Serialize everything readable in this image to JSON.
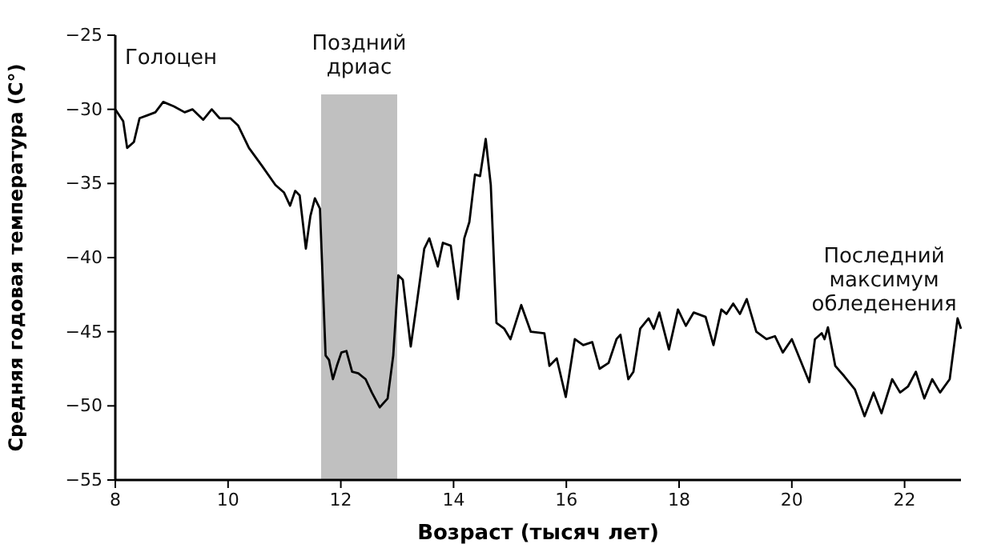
{
  "chart_data": {
    "type": "line",
    "xlabel": "Возраст (тысяч лет)",
    "ylabel": "Средняя годовая температура (C°)",
    "xlim": [
      8,
      23
    ],
    "xticks": [
      8,
      10,
      12,
      14,
      16,
      18,
      20,
      22
    ],
    "ylim": [
      -55,
      -25
    ],
    "yticks": [
      -55,
      -50,
      -45,
      -40,
      -35,
      -30,
      -25
    ],
    "grid": false,
    "bands": [
      {
        "axis": "x",
        "from": 11.65,
        "to": 13.0,
        "label": "Поздний\nдриас",
        "color": "#c0c0c0"
      }
    ],
    "annotations": [
      "Голоцен",
      "Последний\nмаксимум\nобледенения"
    ],
    "series": [
      {
        "color": "#000000",
        "x": [
          8,
          8.14,
          8.21,
          8.33,
          8.43,
          8.57,
          8.71,
          8.85,
          9.04,
          9.23,
          9.37,
          9.56,
          9.71,
          9.85,
          10.04,
          10.18,
          10.37,
          10.6,
          10.84,
          10.99,
          11.1,
          11.19,
          11.27,
          11.38,
          11.46,
          11.54,
          11.63,
          11.73,
          11.79,
          11.86,
          11.93,
          12.01,
          12.1,
          12.2,
          12.31,
          12.44,
          12.55,
          12.69,
          12.83,
          12.93,
          13.02,
          13.1,
          13.24,
          13.34,
          13.48,
          13.57,
          13.72,
          13.81,
          13.95,
          14.08,
          14.19,
          14.28,
          14.38,
          14.47,
          14.57,
          14.66,
          14.76,
          14.9,
          15.01,
          15.2,
          15.37,
          15.61,
          15.7,
          15.83,
          15.99,
          16.15,
          16.3,
          16.46,
          16.59,
          16.75,
          16.89,
          16.96,
          17.1,
          17.19,
          17.31,
          17.46,
          17.55,
          17.65,
          17.82,
          17.98,
          18.12,
          18.26,
          18.47,
          18.61,
          18.75,
          18.84,
          18.96,
          19.08,
          19.2,
          19.37,
          19.55,
          19.7,
          19.84,
          20.0,
          20.17,
          20.31,
          20.41,
          20.53,
          20.58,
          20.64,
          20.77,
          20.93,
          21.12,
          21.29,
          21.45,
          21.59,
          21.78,
          21.92,
          22.06,
          22.2,
          22.35,
          22.49,
          22.63,
          22.8,
          22.94,
          23.0
        ],
        "values": [
          -30.0,
          -30.8,
          -32.6,
          -32.2,
          -30.6,
          -30.4,
          -30.2,
          -29.5,
          -29.8,
          -30.2,
          -30.0,
          -30.7,
          -30.0,
          -30.6,
          -30.6,
          -31.1,
          -32.6,
          -33.8,
          -35.1,
          -35.6,
          -36.5,
          -35.5,
          -35.8,
          -39.4,
          -37.2,
          -36.0,
          -36.7,
          -46.6,
          -46.9,
          -48.2,
          -47.3,
          -46.4,
          -46.3,
          -47.7,
          -47.8,
          -48.2,
          -49.1,
          -50.1,
          -49.5,
          -46.6,
          -41.2,
          -41.5,
          -46.0,
          -43.3,
          -39.4,
          -38.7,
          -40.6,
          -39.0,
          -39.2,
          -42.8,
          -38.7,
          -37.6,
          -34.4,
          -34.5,
          -32.0,
          -35.1,
          -44.4,
          -44.8,
          -45.5,
          -43.2,
          -45.0,
          -45.1,
          -47.3,
          -46.8,
          -49.4,
          -45.5,
          -45.9,
          -45.7,
          -47.5,
          -47.1,
          -45.5,
          -45.2,
          -48.2,
          -47.7,
          -44.8,
          -44.1,
          -44.8,
          -43.7,
          -46.2,
          -43.5,
          -44.6,
          -43.7,
          -44.0,
          -45.9,
          -43.5,
          -43.8,
          -43.1,
          -43.8,
          -42.8,
          -45.0,
          -45.5,
          -45.3,
          -46.4,
          -45.5,
          -47.1,
          -48.4,
          -45.5,
          -45.1,
          -45.5,
          -44.7,
          -47.3,
          -48.0,
          -48.9,
          -50.7,
          -49.1,
          -50.5,
          -48.2,
          -49.1,
          -48.7,
          -47.7,
          -49.5,
          -48.2,
          -49.1,
          -48.2,
          -44.1,
          -44.8
        ]
      }
    ]
  }
}
